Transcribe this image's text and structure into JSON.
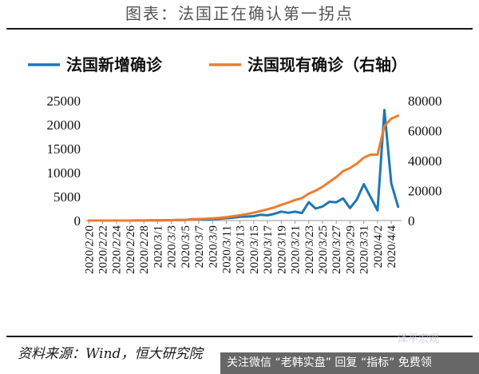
{
  "header": {
    "title": "图表：法国正在确认第一拐点"
  },
  "footer": {
    "source": "资料来源：Wind，恒大研究院",
    "watermark": "关注微信 “老韩实盘” 回复 “指标” 免费领",
    "watermark_logo": "泽平宏观"
  },
  "chart_data": {
    "type": "line",
    "title": "",
    "legend_position": "top",
    "grid": false,
    "x": [
      "2020/2/20",
      "2020/2/21",
      "2020/2/22",
      "2020/2/23",
      "2020/2/24",
      "2020/2/25",
      "2020/2/26",
      "2020/2/27",
      "2020/2/28",
      "2020/2/29",
      "2020/3/1",
      "2020/3/2",
      "2020/3/3",
      "2020/3/4",
      "2020/3/5",
      "2020/3/6",
      "2020/3/7",
      "2020/3/8",
      "2020/3/9",
      "2020/3/10",
      "2020/3/11",
      "2020/3/12",
      "2020/3/13",
      "2020/3/14",
      "2020/3/15",
      "2020/3/16",
      "2020/3/17",
      "2020/3/18",
      "2020/3/19",
      "2020/3/20",
      "2020/3/21",
      "2020/3/22",
      "2020/3/23",
      "2020/3/24",
      "2020/3/25",
      "2020/3/26",
      "2020/3/27",
      "2020/3/28",
      "2020/3/29",
      "2020/3/30",
      "2020/3/31",
      "2020/4/1",
      "2020/4/2",
      "2020/4/3",
      "2020/4/4",
      "2020/4/5"
    ],
    "x_tick_labels": [
      "2020/2/20",
      "2020/2/22",
      "2020/2/24",
      "2020/2/26",
      "2020/2/28",
      "2020/3/1",
      "2020/3/3",
      "2020/3/5",
      "2020/3/7",
      "2020/3/9",
      "2020/3/11",
      "2020/3/13",
      "2020/3/15",
      "2020/3/17",
      "2020/3/19",
      "2020/3/21",
      "2020/3/23",
      "2020/3/25",
      "2020/3/27",
      "2020/3/29",
      "2020/3/31",
      "2020/4/2",
      "2020/4/4"
    ],
    "y_left": {
      "ylim": [
        0,
        25000
      ],
      "ticks": [
        0,
        5000,
        10000,
        15000,
        20000,
        25000
      ]
    },
    "y_right": {
      "ylim": [
        0,
        80000
      ],
      "ticks": [
        0,
        20000,
        40000,
        60000,
        80000
      ]
    },
    "series": [
      {
        "name": "法国新增确诊",
        "axis": "left",
        "color": "#1f77b4",
        "values": [
          0,
          0,
          0,
          0,
          0,
          2,
          2,
          20,
          19,
          43,
          30,
          61,
          73,
          138,
          92,
          276,
          296,
          177,
          286,
          372,
          497,
          595,
          785,
          838,
          924,
          1210,
          1097,
          1404,
          1861,
          1617,
          1847,
          1559,
          3838,
          2499,
          2929,
          3922,
          3809,
          4611,
          2599,
          4376,
          7578,
          4861,
          2116,
          23060,
          7788,
          2886
        ]
      },
      {
        "name": "法国现有确诊（右轴）",
        "axis": "right",
        "color": "#ed7d31",
        "values": [
          0,
          0,
          0,
          0,
          0,
          10,
          12,
          30,
          50,
          90,
          120,
          180,
          250,
          380,
          470,
          740,
          1030,
          1200,
          1480,
          1840,
          2300,
          2860,
          3600,
          4380,
          5250,
          6400,
          7500,
          8800,
          10500,
          12000,
          13700,
          15000,
          18000,
          20000,
          22500,
          25800,
          29000,
          33000,
          35000,
          38000,
          42000,
          44000,
          44000,
          63000,
          68000,
          70000
        ]
      }
    ]
  }
}
